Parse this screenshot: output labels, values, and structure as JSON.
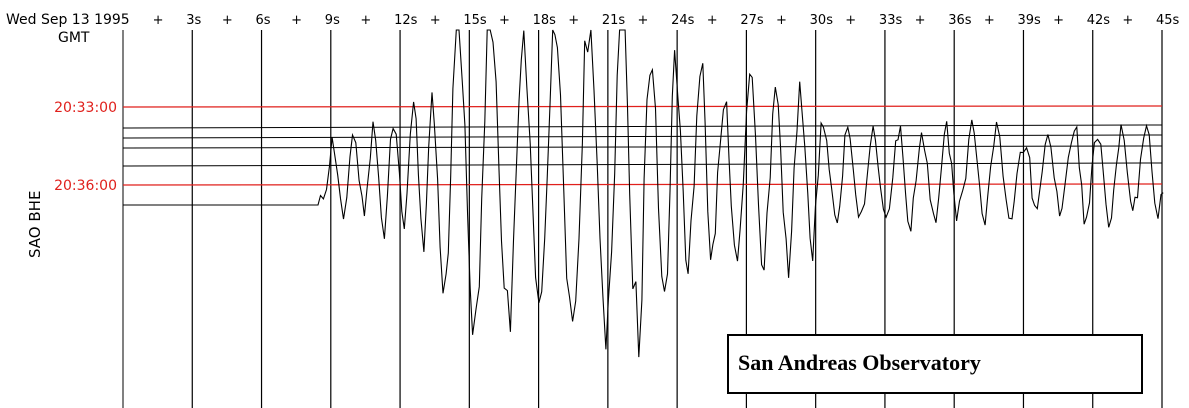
{
  "header": {
    "date": "Wed Sep 13 1995",
    "timezone": "GMT"
  },
  "channel_label": "SAO BHE",
  "observatory_box": "San Andreas Observatory",
  "colors": {
    "trace": "#000000",
    "time_marker": "#e0201c",
    "time_label": "#e0201c"
  },
  "chart_data": {
    "type": "line",
    "x_tick_labels": [
      "3s",
      "6s",
      "9s",
      "12s",
      "15s",
      "18s",
      "21s",
      "24s",
      "27s",
      "30s",
      "33s",
      "36s",
      "39s",
      "42s",
      "45s"
    ],
    "x_range": [
      0,
      45
    ],
    "time_markers": [
      "20:33:00",
      "20:36:00"
    ],
    "grid": "vertical lines every 3 s",
    "annotation": "San Andreas Observatory"
  }
}
